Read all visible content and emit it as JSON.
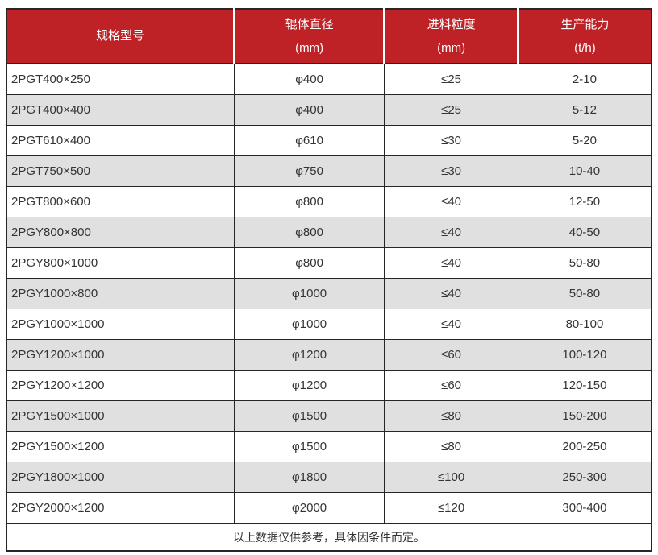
{
  "chart_data": {
    "type": "table",
    "columns": [
      {
        "label": "规格型号",
        "unit": ""
      },
      {
        "label": "辊体直径",
        "unit": "(mm)"
      },
      {
        "label": "进料粒度",
        "unit": "(mm)"
      },
      {
        "label": "生产能力",
        "unit": "(t/h)"
      }
    ],
    "rows": [
      [
        "2PGT400×250",
        "φ400",
        "≤25",
        "2-10"
      ],
      [
        "2PGT400×400",
        "φ400",
        "≤25",
        "5-12"
      ],
      [
        "2PGT610×400",
        "φ610",
        "≤30",
        "5-20"
      ],
      [
        "2PGT750×500",
        "φ750",
        "≤30",
        "10-40"
      ],
      [
        "2PGT800×600",
        "φ800",
        "≤40",
        "12-50"
      ],
      [
        "2PGY800×800",
        "φ800",
        "≤40",
        "40-50"
      ],
      [
        "2PGY800×1000",
        "φ800",
        "≤40",
        "50-80"
      ],
      [
        "2PGY1000×800",
        "φ1000",
        "≤40",
        "50-80"
      ],
      [
        "2PGY1000×1000",
        "φ1000",
        "≤40",
        "80-100"
      ],
      [
        "2PGY1200×1000",
        "φ1200",
        "≤60",
        "100-120"
      ],
      [
        "2PGY1200×1200",
        "φ1200",
        "≤60",
        "120-150"
      ],
      [
        "2PGY1500×1000",
        "φ1500",
        "≤80",
        "150-200"
      ],
      [
        "2PGY1500×1200",
        "φ1500",
        "≤80",
        "200-250"
      ],
      [
        "2PGY1800×1000",
        "φ1800",
        "≤100",
        "250-300"
      ],
      [
        "2PGY2000×1200",
        "φ2000",
        "≤120",
        "300-400"
      ]
    ],
    "footer_note": "以上数据仅供参考，具体因条件而定。"
  },
  "colors": {
    "header_bg": "#be2126",
    "header_text": "#ffffff",
    "row_bg": "#ffffff",
    "row_alt_bg": "#e0e0e0",
    "body_text": "#333333",
    "border": "#262626"
  }
}
